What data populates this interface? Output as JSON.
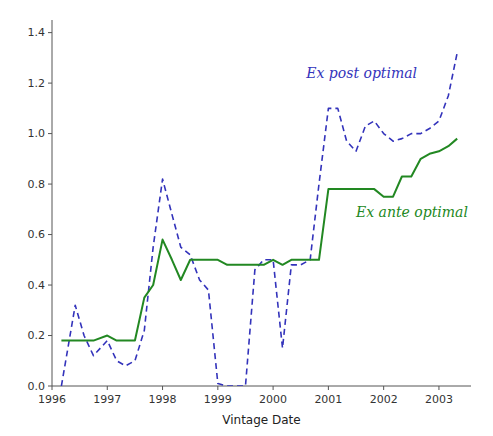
{
  "chart_data": {
    "type": "line",
    "xlabel": "Vintage Date",
    "x": [
      1996.17,
      1996.42,
      1996.58,
      1996.75,
      1997.0,
      1997.17,
      1997.33,
      1997.5,
      1997.67,
      1997.83,
      1998.0,
      1998.17,
      1998.33,
      1998.5,
      1998.67,
      1998.83,
      1999.0,
      1999.17,
      1999.33,
      1999.5,
      1999.67,
      1999.83,
      2000.0,
      2000.17,
      2000.33,
      2000.5,
      2000.67,
      2000.83,
      2001.0,
      2001.17,
      2001.33,
      2001.5,
      2001.67,
      2001.83,
      2002.0,
      2002.17,
      2002.33,
      2002.5,
      2002.67,
      2002.83,
      2003.0,
      2003.17,
      2003.33
    ],
    "series": [
      {
        "color": "#3333bb",
        "line_style": "dashed",
        "values": [
          0.0,
          0.32,
          0.2,
          0.12,
          0.18,
          0.1,
          0.08,
          0.1,
          0.22,
          0.55,
          0.82,
          0.68,
          0.55,
          0.52,
          0.42,
          0.38,
          0.01,
          0.0,
          0.0,
          0.0,
          0.46,
          0.5,
          0.5,
          0.15,
          0.48,
          0.48,
          0.5,
          0.8,
          1.1,
          1.1,
          0.97,
          0.93,
          1.03,
          1.05,
          1.0,
          0.97,
          0.98,
          1.0,
          1.0,
          1.02,
          1.05,
          1.15,
          1.32
        ]
      },
      {
        "color": "#228822",
        "line_style": "solid",
        "values": [
          0.18,
          0.18,
          0.18,
          0.18,
          0.2,
          0.18,
          0.18,
          0.18,
          0.35,
          0.4,
          0.58,
          0.5,
          0.42,
          0.5,
          0.5,
          0.5,
          0.5,
          0.48,
          0.48,
          0.48,
          0.48,
          0.48,
          0.5,
          0.48,
          0.5,
          0.5,
          0.5,
          0.5,
          0.78,
          0.78,
          0.78,
          0.78,
          0.78,
          0.78,
          0.75,
          0.75,
          0.83,
          0.83,
          0.9,
          0.92,
          0.93,
          0.95,
          0.98
        ]
      }
    ],
    "annotations": [
      {
        "text": "Ex post optimal",
        "x": 2000.6,
        "y": 1.22,
        "color": "#3333bb"
      },
      {
        "text": "Ex ante optimal",
        "x": 2001.5,
        "y": 0.67,
        "color": "#228822"
      }
    ],
    "xlim": [
      1996.0,
      2003.58
    ],
    "ylim": [
      0.0,
      1.45
    ],
    "xticks": [
      1996,
      1997,
      1998,
      1999,
      2000,
      2001,
      2002,
      2003
    ],
    "yticks": [
      {
        "value": 0.0,
        "label": "0.0"
      },
      0.2,
      0.4,
      0.6,
      0.8,
      {
        "value": 1.0,
        "label": "1.0"
      },
      1.2,
      1.4
    ]
  }
}
